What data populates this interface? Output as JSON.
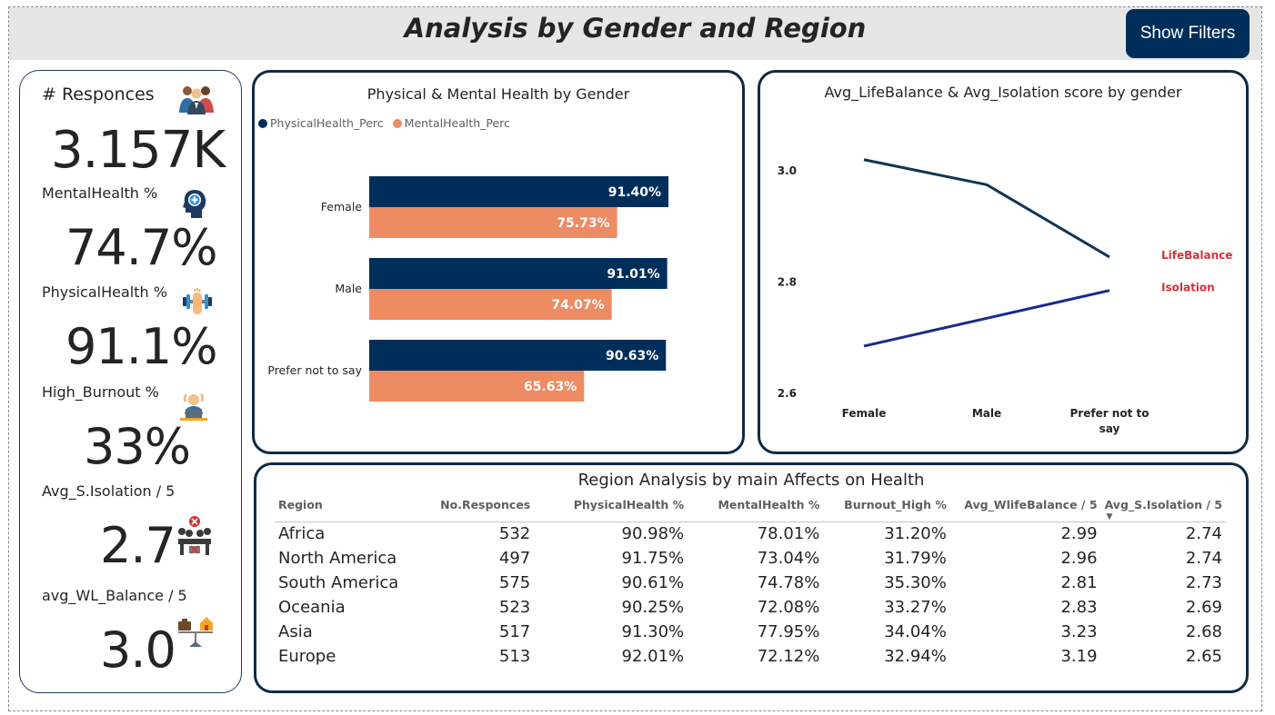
{
  "header": {
    "title": "Analysis by Gender and Region",
    "show_filters_label": "Show Filters"
  },
  "kpis": [
    {
      "label": "# Responces",
      "value": "3.157K",
      "icon": "people-group-icon"
    },
    {
      "label": "MentalHealth %",
      "value": "74.7%",
      "icon": "head-brain-icon"
    },
    {
      "label": "PhysicalHealth %",
      "value": "91.1%",
      "icon": "dumbbell-icon"
    },
    {
      "label": "High_Burnout %",
      "value": "33%",
      "icon": "stressed-worker-icon"
    },
    {
      "label": "Avg_S.Isolation / 5",
      "value": "2.7",
      "icon": "isolation-meeting-icon"
    },
    {
      "label": "avg_WL_Balance / 5",
      "value": "3.0",
      "icon": "work-life-balance-icon"
    }
  ],
  "colors": {
    "navy": "#002e5b",
    "salmon": "#ed8b63",
    "line_life": "#0e3558",
    "line_iso": "#1a2a8a",
    "label_red": "#d13438"
  },
  "chart_data": [
    {
      "type": "bar",
      "title": "Physical & Mental Health by Gender",
      "categories": [
        "Female",
        "Male",
        "Prefer not to say"
      ],
      "series": [
        {
          "name": "PhysicalHealth_Perc",
          "values": [
            91.4,
            91.01,
            90.63
          ],
          "labels": [
            "91.40%",
            "91.01%",
            "90.63%"
          ]
        },
        {
          "name": "MentalHealth_Perc",
          "values": [
            75.73,
            74.07,
            65.63
          ],
          "labels": [
            "75.73%",
            "74.07%",
            "65.63%"
          ]
        }
      ],
      "orientation": "horizontal",
      "legend": "top-left"
    },
    {
      "type": "line",
      "title": "Avg_LifeBalance & Avg_Isolation score by gender",
      "categories": [
        "Female",
        "Male",
        "Prefer not to say"
      ],
      "x_tick_labels": [
        [
          "Female"
        ],
        [
          "Male"
        ],
        [
          "Prefer not to",
          "say"
        ]
      ],
      "y_ticks": [
        "3.0",
        "2.8",
        "2.6"
      ],
      "y_tick_values": [
        3.0,
        2.8,
        2.6
      ],
      "ylim": [
        2.6,
        3.0
      ],
      "series": [
        {
          "name": "LifeBalance",
          "values": [
            3.02,
            2.975,
            2.845
          ]
        },
        {
          "name": "Isolation",
          "values": [
            2.685,
            2.735,
            2.785
          ]
        }
      ],
      "legend": "inline-right"
    },
    {
      "type": "table",
      "title": "Region Analysis by main Affects on Health",
      "columns": [
        "Region",
        "No.Responces",
        "PhysicalHealth %",
        "MentalHealth %",
        "Burnout_High %",
        "Avg_WlifeBalance / 5",
        "Avg_S.Isolation / 5"
      ],
      "rows": [
        [
          "Africa",
          "532",
          "90.98%",
          "78.01%",
          "31.20%",
          "2.99",
          "2.74"
        ],
        [
          "North America",
          "497",
          "91.75%",
          "73.04%",
          "31.79%",
          "2.96",
          "2.74"
        ],
        [
          "South America",
          "575",
          "90.61%",
          "74.78%",
          "35.30%",
          "2.81",
          "2.73"
        ],
        [
          "Oceania",
          "523",
          "90.25%",
          "72.08%",
          "33.27%",
          "2.83",
          "2.69"
        ],
        [
          "Asia",
          "517",
          "91.30%",
          "77.95%",
          "34.04%",
          "3.23",
          "2.68"
        ],
        [
          "Europe",
          "513",
          "92.01%",
          "72.12%",
          "32.94%",
          "3.19",
          "2.65"
        ]
      ],
      "sort_column": "Avg_S.Isolation / 5",
      "sort_direction": "descending"
    }
  ]
}
